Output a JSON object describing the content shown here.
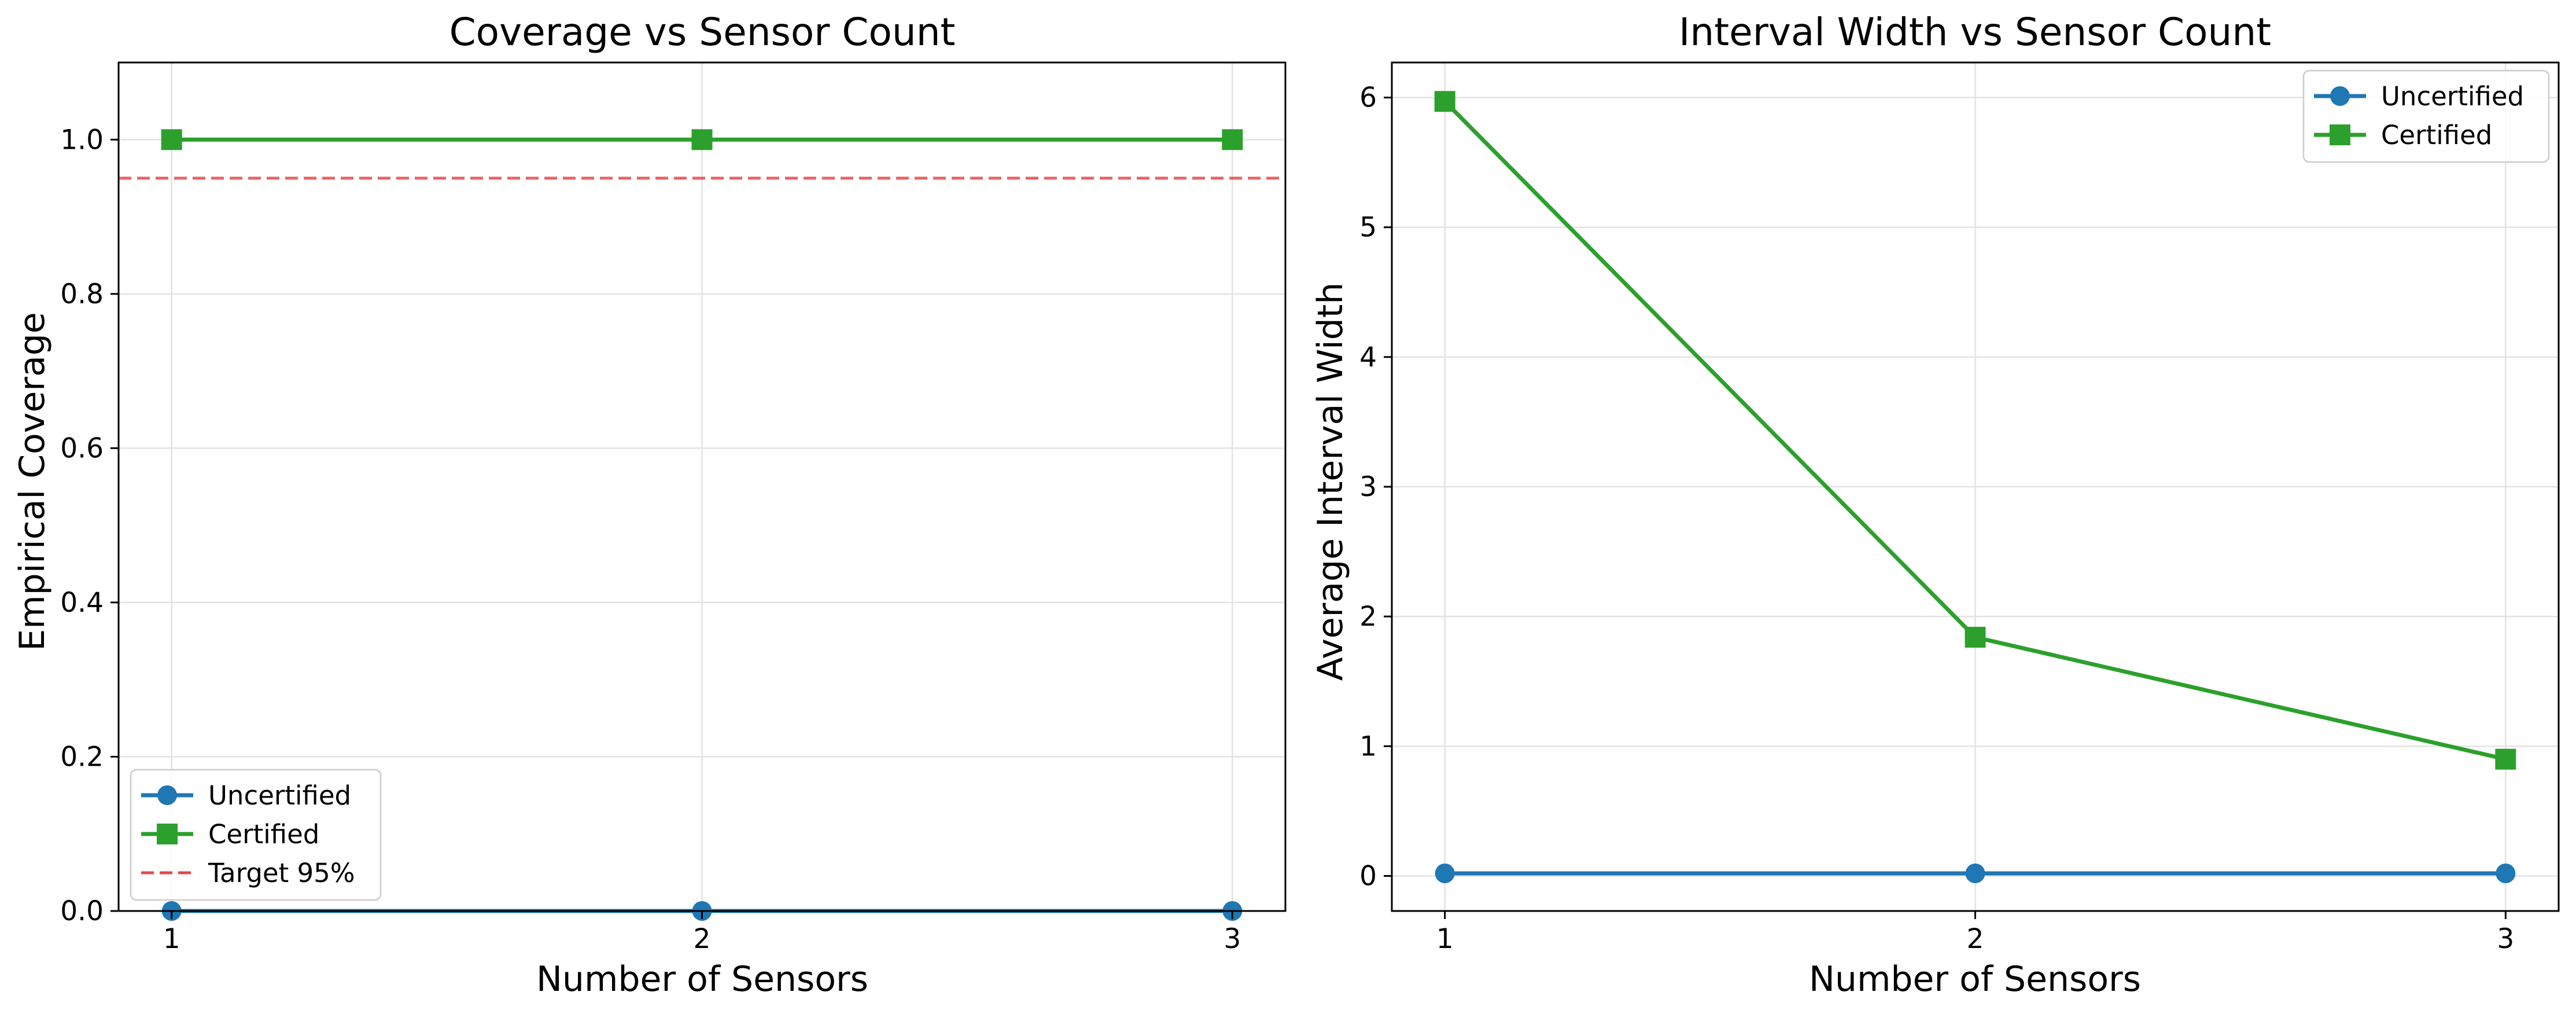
{
  "chart_data": [
    {
      "type": "line",
      "title": "Coverage vs Sensor Count",
      "xlabel": "Number of Sensors",
      "ylabel": "Empirical Coverage",
      "x": [
        1,
        2,
        3
      ],
      "xticks": [
        "1",
        "2",
        "3"
      ],
      "yticks": [
        "0.0",
        "0.2",
        "0.4",
        "0.6",
        "0.8",
        "1.0"
      ],
      "ylim": [
        0,
        1.1
      ],
      "grid": true,
      "legend_position": "lower-left",
      "series": [
        {
          "name": "Uncertified",
          "values": [
            0.0,
            0.0,
            0.0
          ],
          "color": "#1f77b4",
          "marker": "circle"
        },
        {
          "name": "Certified",
          "values": [
            1.0,
            1.0,
            1.0
          ],
          "color": "#2ca02c",
          "marker": "square"
        }
      ],
      "reference_line": {
        "name": "Target 95%",
        "value": 0.95,
        "color": "#e8474a",
        "style": "dashed"
      }
    },
    {
      "type": "line",
      "title": "Interval Width vs Sensor Count",
      "xlabel": "Number of Sensors",
      "ylabel": "Average Interval Width",
      "x": [
        1,
        2,
        3
      ],
      "xticks": [
        "1",
        "2",
        "3"
      ],
      "yticks": [
        "0",
        "1",
        "2",
        "3",
        "4",
        "5",
        "6"
      ],
      "ylim": [
        -0.27,
        6.27
      ],
      "grid": true,
      "legend_position": "upper-right",
      "series": [
        {
          "name": "Uncertified",
          "values": [
            0.02,
            0.02,
            0.02
          ],
          "color": "#1f77b4",
          "marker": "circle"
        },
        {
          "name": "Certified",
          "values": [
            5.97,
            1.84,
            0.9
          ],
          "color": "#2ca02c",
          "marker": "square"
        }
      ]
    }
  ]
}
